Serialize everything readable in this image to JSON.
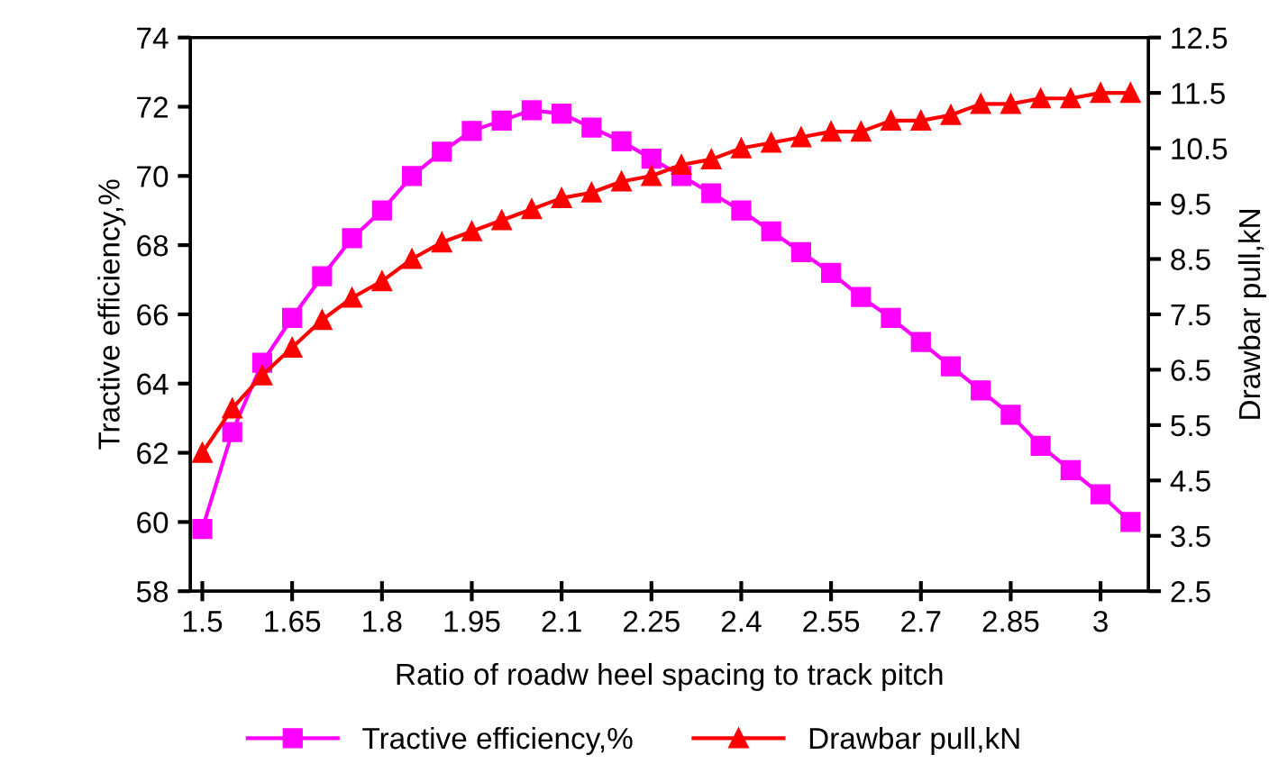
{
  "chart_data": {
    "type": "line",
    "xlabel": "Ratio of roadw heel spacing to track pitch",
    "ylabel": "Tractive efficiency,%",
    "y2label": "Drawbar pull,kN",
    "x": [
      1.5,
      1.55,
      1.6,
      1.65,
      1.7,
      1.75,
      1.8,
      1.85,
      1.9,
      1.95,
      2.0,
      2.05,
      2.1,
      2.15,
      2.2,
      2.25,
      2.3,
      2.35,
      2.4,
      2.45,
      2.5,
      2.55,
      2.6,
      2.65,
      2.7,
      2.75,
      2.8,
      2.85,
      2.9,
      2.95,
      3.0,
      3.05
    ],
    "series": [
      {
        "name": "Tractive efficiency,%",
        "color": "#ff00ff",
        "marker": "square",
        "axis": "y",
        "values": [
          59.8,
          62.6,
          64.6,
          65.9,
          67.1,
          68.2,
          69.0,
          70.0,
          70.7,
          71.3,
          71.6,
          71.9,
          71.8,
          71.4,
          71.0,
          70.5,
          70.0,
          69.5,
          69.0,
          68.4,
          67.8,
          67.2,
          66.5,
          65.9,
          65.2,
          64.5,
          63.8,
          63.1,
          62.2,
          61.5,
          60.8,
          60.0
        ]
      },
      {
        "name": "Drawbar pull,kN",
        "color": "#ff0000",
        "marker": "triangle",
        "axis": "y2",
        "values": [
          5.0,
          5.8,
          6.4,
          6.9,
          7.4,
          7.8,
          8.1,
          8.5,
          8.8,
          9.0,
          9.2,
          9.4,
          9.6,
          9.7,
          9.9,
          10.0,
          10.2,
          10.3,
          10.5,
          10.6,
          10.7,
          10.8,
          10.8,
          11.0,
          11.0,
          11.1,
          11.3,
          11.3,
          11.4,
          11.4,
          11.5,
          11.5
        ]
      }
    ],
    "xlim": [
      1.48,
      3.08
    ],
    "xticks": [
      1.5,
      1.65,
      1.8,
      1.95,
      2.1,
      2.25,
      2.4,
      2.55,
      2.7,
      2.85,
      3
    ],
    "ylim": [
      58,
      74
    ],
    "yticks": [
      58,
      60,
      62,
      64,
      66,
      68,
      70,
      72,
      74
    ],
    "y2lim": [
      2.5,
      12.5
    ],
    "y2ticks": [
      2.5,
      3.5,
      4.5,
      5.5,
      6.5,
      7.5,
      8.5,
      9.5,
      10.5,
      11.5,
      12.5
    ],
    "grid": false,
    "legend": "bottom",
    "line_style": "solid"
  }
}
